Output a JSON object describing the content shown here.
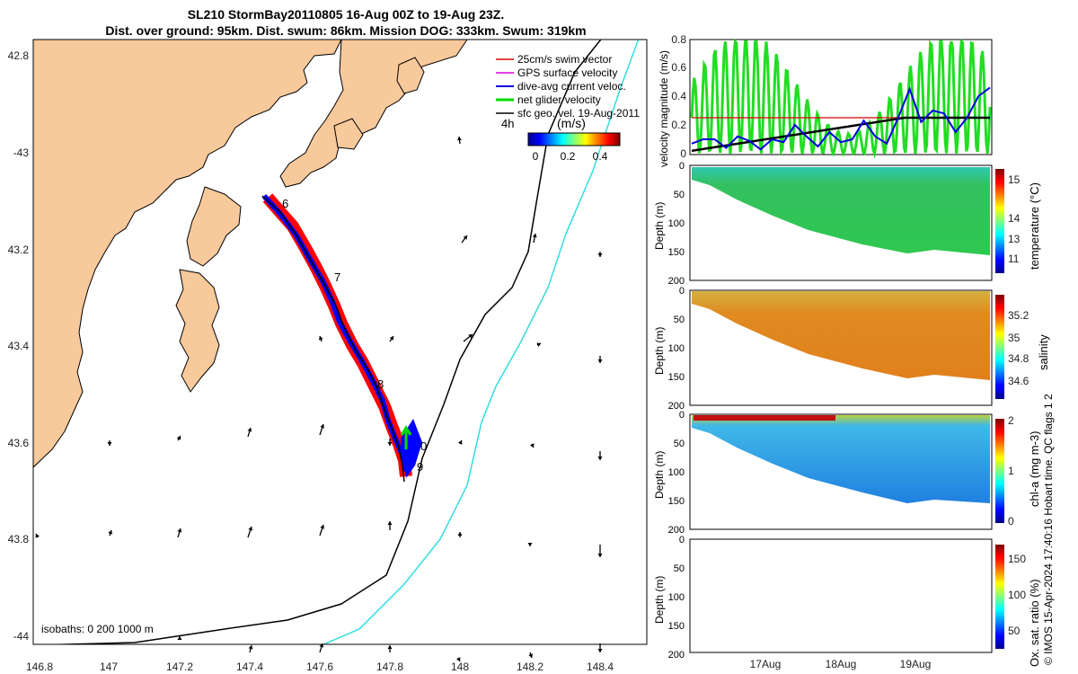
{
  "title": {
    "line1": "SL210 StormBay20110805 16-Aug 00Z to 19-Aug 23Z.",
    "line2": "Dist. over ground: 95km. Dist. swum: 86km. Mission DOG: 333km. Swum: 319km"
  },
  "map": {
    "lon_ticks": [
      "146.8",
      "147",
      "147.2",
      "147.4",
      "147.6",
      "147.8",
      "148",
      "148.2",
      "148.4"
    ],
    "lat_ticks": [
      "42.8",
      "-43",
      "43.2",
      "43.4",
      "43.6",
      "43.8",
      "-44"
    ],
    "lon_range": [
      146.78,
      148.52
    ],
    "lat_range": [
      -42.77,
      -44.02
    ],
    "legend": [
      {
        "label": "25cm/s swim vector",
        "color": "#e00000"
      },
      {
        "label": "GPS surface velocity",
        "color": "#e000e0"
      },
      {
        "label": "dive-avg current veloc.",
        "color": "#0000e0"
      },
      {
        "label": "net glider velocity",
        "color": "#00dd00"
      },
      {
        "label": "sfc geo. vel. 19-Aug-2011",
        "color": "#000000"
      }
    ],
    "time_step_label": "4h",
    "colorbar_title": "(m/s)",
    "colorbar_ticks": [
      "0",
      "0.2",
      "0.4"
    ],
    "day_markers": [
      "6",
      "7",
      "8",
      "0",
      "9"
    ],
    "isobath_label": "isobaths: 0  200  1000 m",
    "land_color": "#f8c99b",
    "track_colors": {
      "swim": "#ff0000",
      "current": "#0000ff",
      "net": "#00dd00"
    }
  },
  "velocity_panel": {
    "ylabel": "velocity magnitude (m/s)",
    "y_ticks": [
      "0",
      "0.2",
      "0.4",
      "0.6",
      "0.8"
    ],
    "ylim": [
      0,
      0.8
    ]
  },
  "sections": [
    {
      "label": "temperature (°C)",
      "ticks": [
        "15",
        "14",
        "13",
        "12",
        "11"
      ],
      "has_data": true
    },
    {
      "label": "salinity",
      "ticks": [
        "35.2",
        "35",
        "34.8",
        "34.6"
      ],
      "has_data": true
    },
    {
      "label": "chl-a (mg m-3)",
      "ticks": [
        "2",
        "1",
        "0"
      ],
      "has_data": true
    },
    {
      "label": "Ox. sat. ratio (%)",
      "ticks": [
        "150",
        "100",
        "50"
      ],
      "has_data": false
    }
  ],
  "depth_label": "Depth (m)",
  "depth_ticks": [
    "0",
    "50",
    "100",
    "150",
    "200"
  ],
  "time_ticks": [
    "17Aug",
    "18Aug",
    "19Aug"
  ],
  "qc_label": "QC flags 1  2",
  "copyright": "© IMOS 15-Apr-2024 17:40:16 Hobart time."
}
